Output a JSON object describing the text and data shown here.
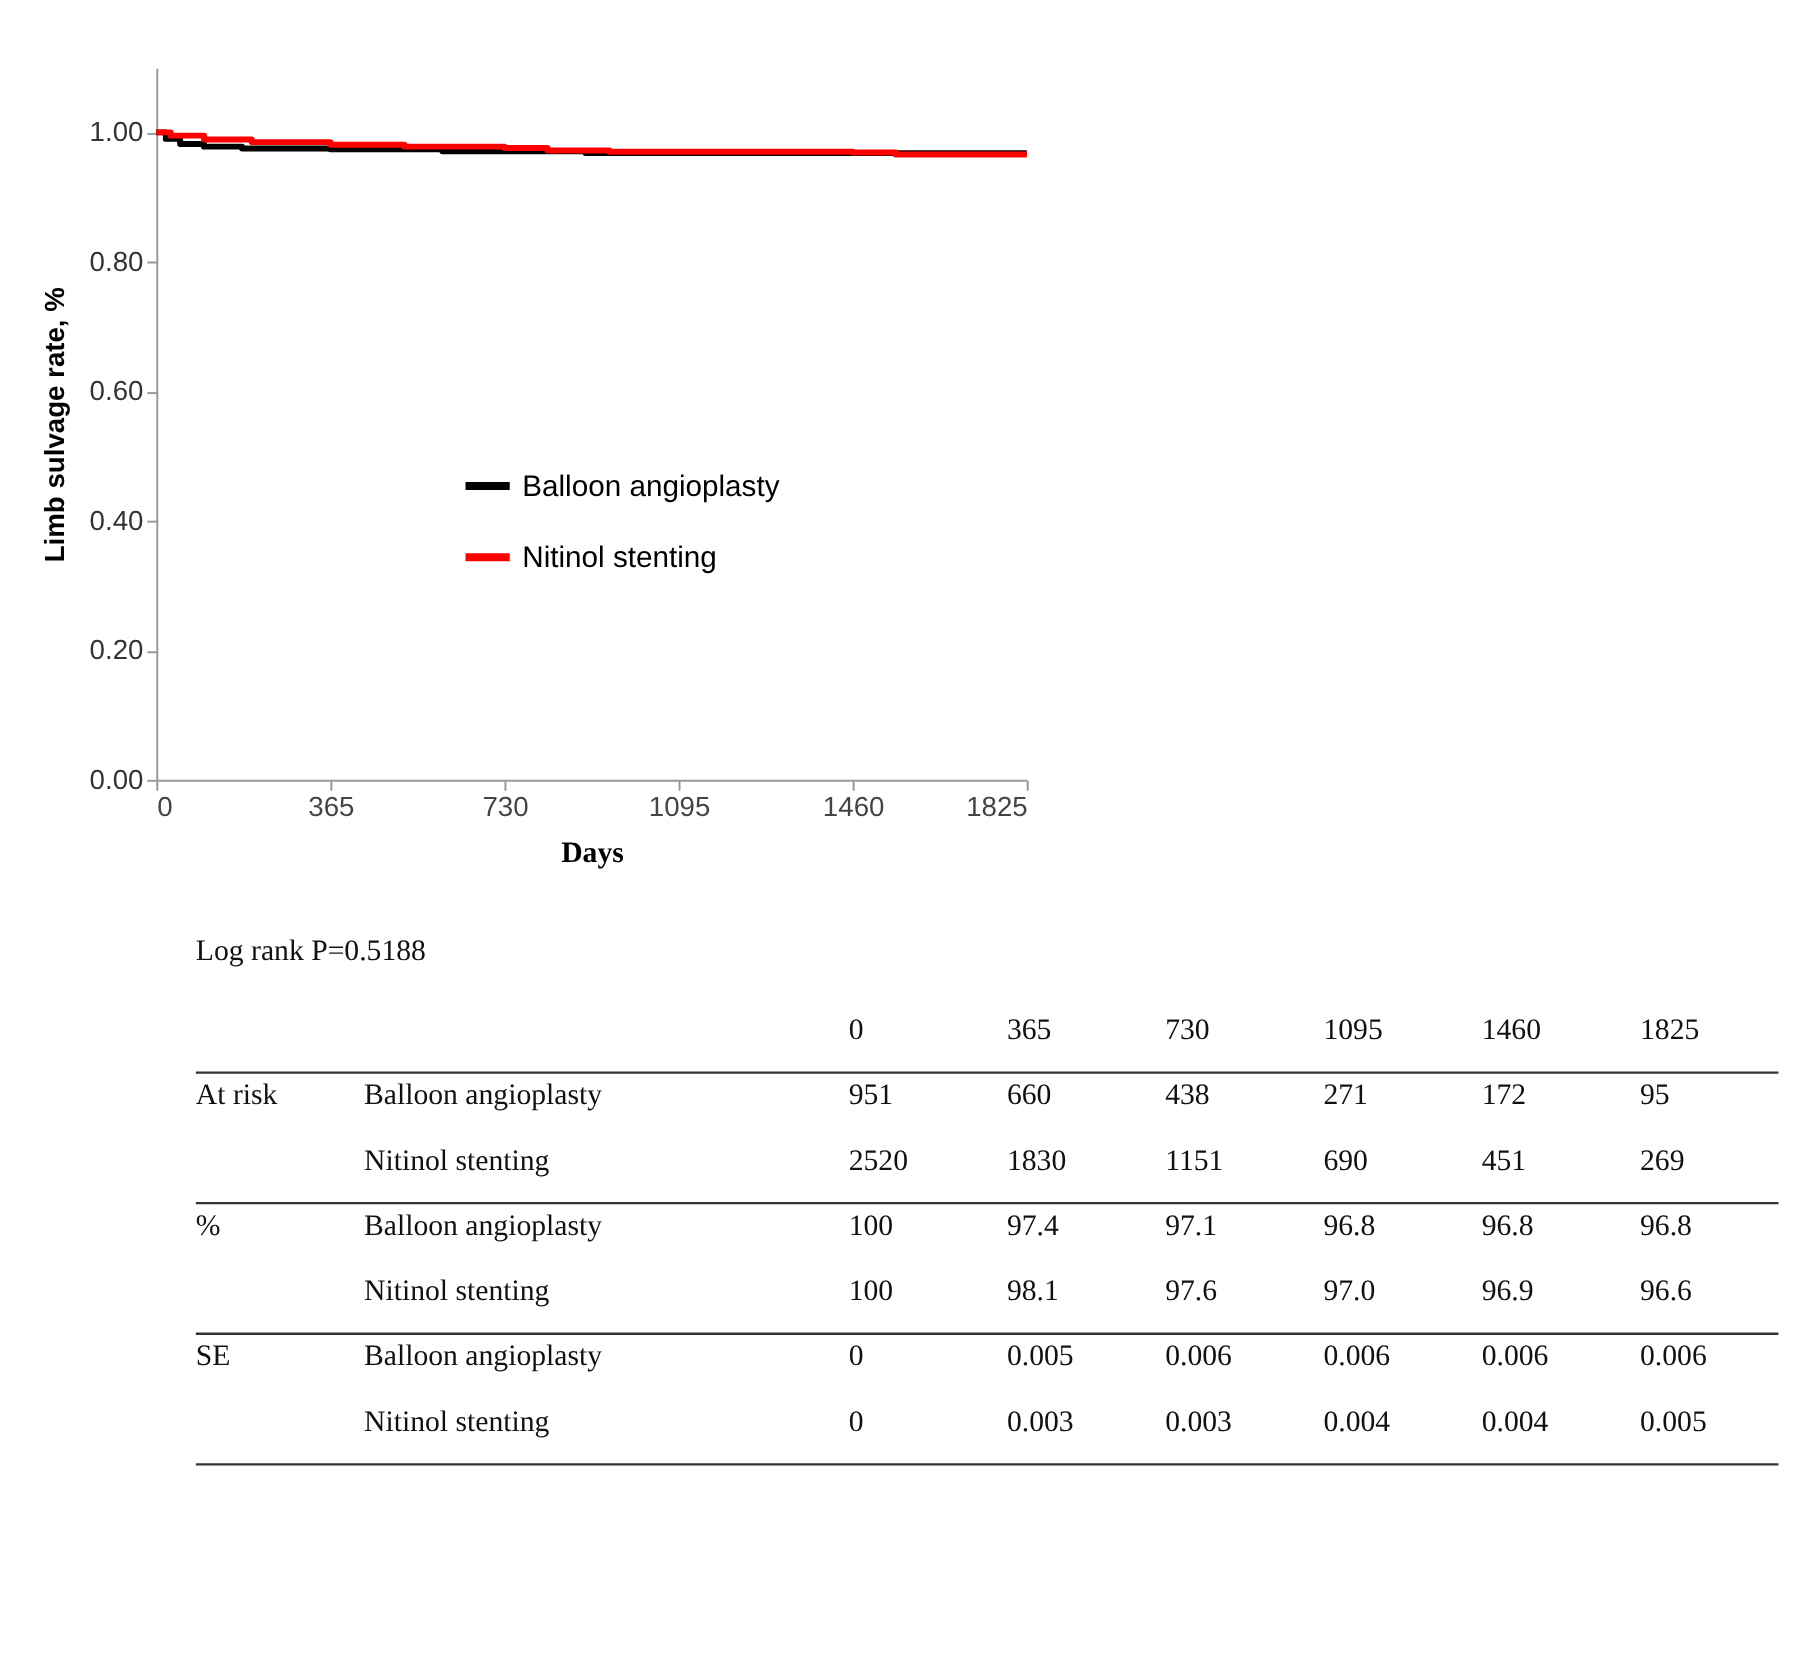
{
  "chart_data": {
    "type": "step",
    "xlabel": "Days",
    "ylabel": "Limb sulvage rate, %",
    "xlim": [
      0,
      1825
    ],
    "xticks": [
      0,
      365,
      730,
      1095,
      1460,
      1825
    ],
    "ylim": [
      0,
      1.1
    ],
    "yticks": [
      {
        "value": 0,
        "label": "0.00"
      },
      {
        "value": 0.2,
        "label": "0.20"
      },
      {
        "value": 0.4,
        "label": "0.40"
      },
      {
        "value": 0.6,
        "label": "0.60"
      },
      {
        "value": 0.8,
        "label": "0.80"
      },
      {
        "value": 1,
        "label": "1.00"
      }
    ],
    "grid": false,
    "legend": "center",
    "marker": "none",
    "line_style": "solid",
    "series": [
      {
        "name": "Balloon angioplasty",
        "color": "#000000",
        "x": [
          0,
          20,
          50,
          100,
          180,
          365,
          600,
          730,
          900,
          1095,
          1460,
          1825
        ],
        "values": [
          1.0,
          0.99,
          0.982,
          0.978,
          0.975,
          0.974,
          0.971,
          0.971,
          0.968,
          0.968,
          0.968,
          0.968
        ]
      },
      {
        "name": "Nitinol stenting",
        "color": "#ff0000",
        "x": [
          0,
          30,
          100,
          200,
          365,
          520,
          730,
          820,
          950,
          1095,
          1460,
          1550,
          1825
        ],
        "values": [
          1.0,
          0.995,
          0.989,
          0.985,
          0.981,
          0.978,
          0.976,
          0.972,
          0.97,
          0.97,
          0.969,
          0.966,
          0.966
        ]
      }
    ],
    "annotations": [
      "Log rank P=0.5188",
      "\t\t0\t365\t730\t1095\t1460\t1825",
      "At risk\tBalloon angioplasty\t951\t660\t438\t271\t172\t95",
      "\tNitinol stenting\t2520\t1830\t1151\t690\t451\t269",
      "%\tBalloon angioplasty\t100\t97.4\t97.1\t96.8\t96.8\t96.8",
      "\tNitinol stenting\t100\t98.1\t97.6\t97.0\t96.9\t96.6",
      "SE\tBalloon angioplasty\t0\t0.005\t0.006\t0.006\t0.006\t0.006",
      "\tNitinol stenting\t0\t0.003\t0.003\t0.004\t0.004\t0.005"
    ]
  }
}
